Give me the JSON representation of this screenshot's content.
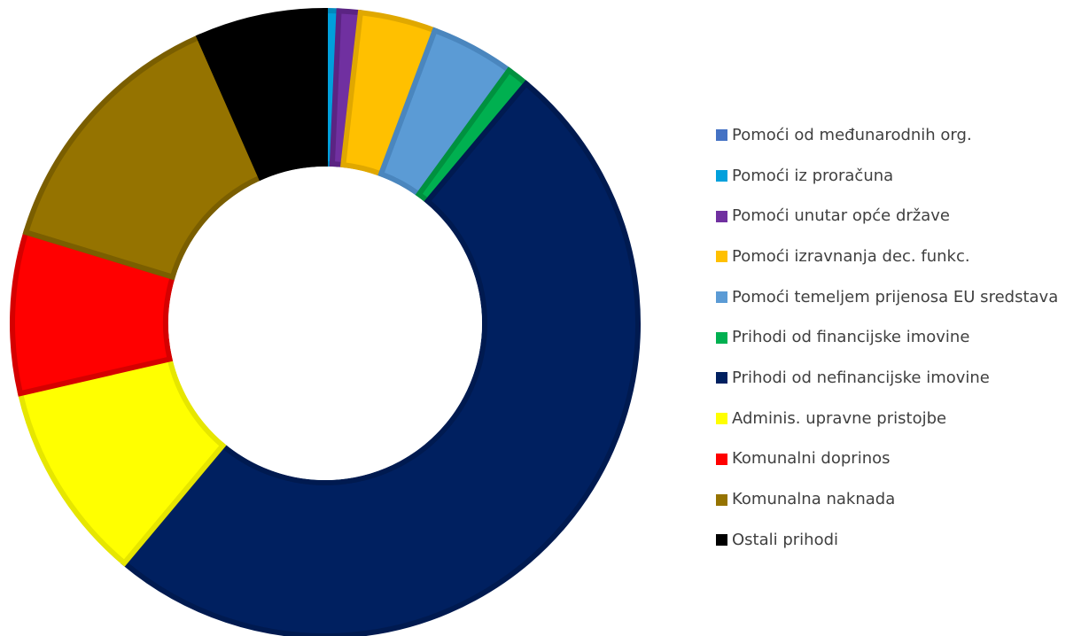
{
  "chart_data": {
    "type": "pie",
    "subtype": "donut",
    "legend_position": "right",
    "series": [
      {
        "name": "Pomoći od međunarodnih org.",
        "value": 0.0,
        "color": "#4472C4",
        "border": "#2F5597"
      },
      {
        "name": "Pomoći iz proračuna",
        "value": 0.7,
        "color": "#00A0DC",
        "border": "#0089BD"
      },
      {
        "name": "Pomoći unutar opće države",
        "value": 1.1,
        "color": "#7030A0",
        "border": "#5B2483"
      },
      {
        "name": "Pomoći izravnanja dec. funkc.",
        "value": 3.9,
        "color": "#FFC000",
        "border": "#E0A800"
      },
      {
        "name": "Pomoći temeljem prijenosa EU sredstava",
        "value": 4.3,
        "color": "#5B9BD5",
        "border": "#4A86BE"
      },
      {
        "name": "Prihodi od financijske imovine",
        "value": 1.1,
        "color": "#00B050",
        "border": "#00913F"
      },
      {
        "name": "Prihodi od nefinancijske imovine",
        "value": 50.0,
        "color": "#002060",
        "border": "#001A50"
      },
      {
        "name": "Adminis. upravne pristojbe",
        "value": 10.3,
        "color": "#FFFF00",
        "border": "#E6E600"
      },
      {
        "name": "Komunalni doprinos",
        "value": 8.3,
        "color": "#FF0000",
        "border": "#D50000"
      },
      {
        "name": "Komunalna naknada",
        "value": 13.7,
        "color": "#957300",
        "border": "#7A5E00"
      },
      {
        "name": "Ostali prihodi",
        "value": 6.6,
        "color": "#000000",
        "border": "#000000"
      }
    ]
  }
}
